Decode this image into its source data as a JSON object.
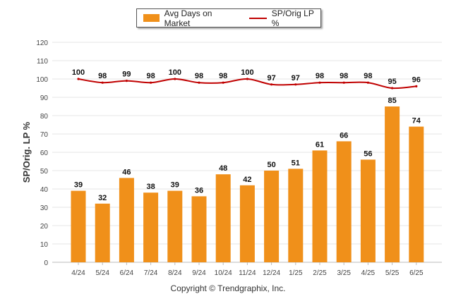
{
  "legend": {
    "bar_label": "Avg Days on Market",
    "line_label": "SP/Orig LP %"
  },
  "copyright": "Copyright © Trendgraphix, Inc.",
  "chart_data": {
    "type": "bar",
    "categories": [
      "4/24",
      "5/24",
      "6/24",
      "7/24",
      "8/24",
      "9/24",
      "10/24",
      "11/24",
      "12/24",
      "1/25",
      "2/25",
      "3/25",
      "4/25",
      "5/25",
      "6/25"
    ],
    "series": [
      {
        "name": "Avg Days on Market",
        "kind": "bar",
        "color": "#f0901a",
        "values": [
          39,
          32,
          46,
          38,
          39,
          36,
          48,
          42,
          50,
          51,
          61,
          66,
          56,
          85,
          74
        ]
      },
      {
        "name": "SP/Orig LP %",
        "kind": "line",
        "color": "#c00000",
        "values": [
          100,
          98,
          99,
          98,
          100,
          98,
          98,
          100,
          97,
          97,
          98,
          98,
          98,
          95,
          96
        ]
      }
    ],
    "ylabel": "SP/Orig. LP %",
    "xlabel": "",
    "ylim": [
      0,
      120
    ],
    "yticks": [
      0,
      10,
      20,
      30,
      40,
      50,
      60,
      70,
      80,
      90,
      100,
      110,
      120
    ],
    "grid": true,
    "legend_position": "top-center"
  }
}
